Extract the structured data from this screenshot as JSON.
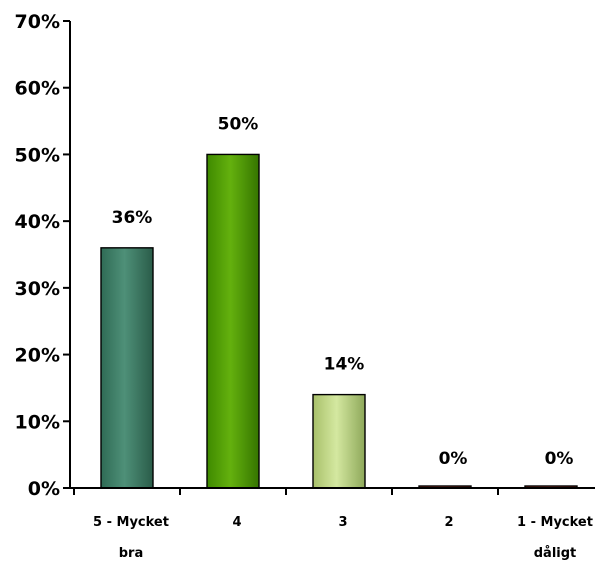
{
  "chart_data": {
    "type": "bar",
    "categories": [
      [
        "5 - Mycket",
        "bra"
      ],
      [
        "4"
      ],
      [
        "3"
      ],
      [
        "2"
      ],
      [
        "1 - Mycket",
        "dåligt"
      ]
    ],
    "values": [
      36,
      50,
      14,
      0,
      0
    ],
    "value_labels": [
      "36%",
      "50%",
      "14%",
      "0%",
      "0%"
    ],
    "ylim": [
      0,
      70
    ],
    "yticks": [
      0,
      10,
      20,
      30,
      40,
      50,
      60,
      70
    ],
    "ytick_labels": [
      "0%",
      "10%",
      "20%",
      "30%",
      "40%",
      "50%",
      "60%",
      "70%"
    ],
    "grid": false,
    "legend": false,
    "bar_colors": [
      [
        "#2f6b55",
        "#4e9078",
        "#2a5c49"
      ],
      [
        "#3f8a00",
        "#64b10e",
        "#357500"
      ],
      [
        "#a8c06a",
        "#d4e8a0",
        "#8ea85a"
      ],
      [
        "#9a2c1c",
        "#c24a36",
        "#7a2014"
      ],
      [
        "#9a2c1c",
        "#c24a36",
        "#7a2014"
      ]
    ]
  }
}
